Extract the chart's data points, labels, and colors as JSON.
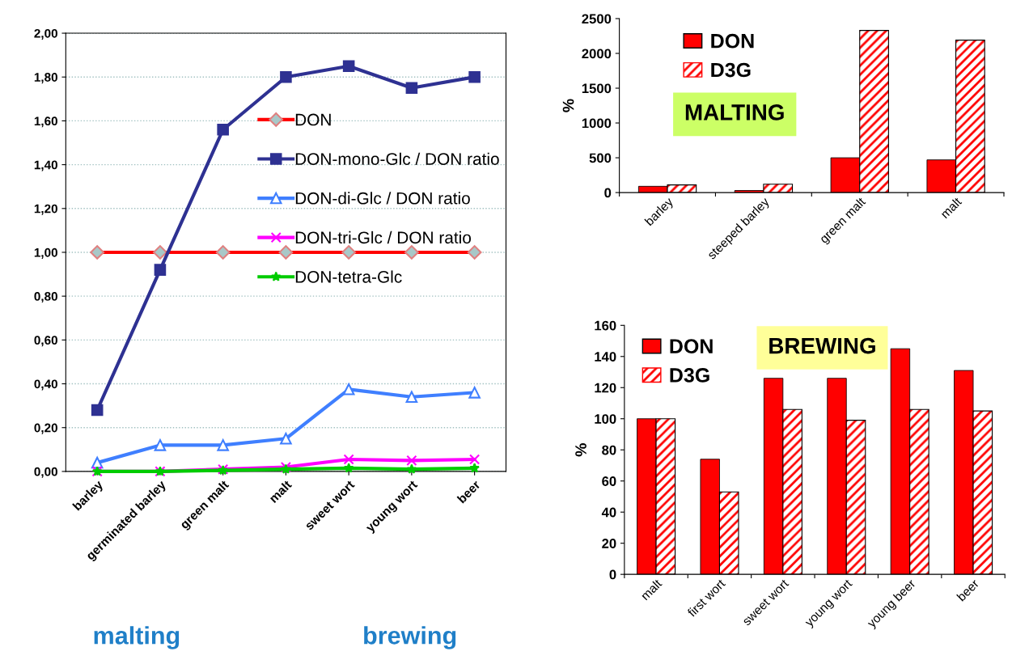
{
  "chart_data": [
    {
      "type": "line",
      "categories": [
        "barley",
        "germinated barley",
        "green malt",
        "malt",
        "sweet wort",
        "young wort",
        "beer"
      ],
      "series": [
        {
          "name": "DON",
          "color": "#ff0000",
          "marker": "diamond",
          "values": [
            1.0,
            1.0,
            1.0,
            1.0,
            1.0,
            1.0,
            1.0
          ]
        },
        {
          "name": "DON-mono-Glc / DON ratio",
          "color": "#2e3192",
          "marker": "square",
          "values": [
            0.28,
            0.92,
            1.56,
            1.8,
            1.85,
            1.75,
            1.8
          ]
        },
        {
          "name": "DON-di-Glc / DON ratio",
          "color": "#3f7fff",
          "marker": "triangle",
          "values": [
            0.04,
            0.12,
            0.12,
            0.15,
            0.375,
            0.34,
            0.36
          ]
        },
        {
          "name": "DON-tri-Glc / DON ratio",
          "color": "#ff00ff",
          "marker": "cross",
          "values": [
            0.0,
            0.0,
            0.01,
            0.02,
            0.055,
            0.05,
            0.055
          ]
        },
        {
          "name": "DON-tetra-Glc",
          "color": "#00cc00",
          "marker": "star",
          "values": [
            0.0,
            0.0,
            0.005,
            0.01,
            0.015,
            0.01,
            0.015
          ]
        }
      ],
      "ylim": [
        0,
        2
      ],
      "yticks": [
        {
          "value": 0,
          "label": "0,00"
        },
        {
          "value": 0.2,
          "label": "0,20"
        },
        {
          "value": 0.4,
          "label": "0,40"
        },
        {
          "value": 0.6,
          "label": "0,60"
        },
        {
          "value": 0.8,
          "label": "0,80"
        },
        {
          "value": 1.0,
          "label": "1,00"
        },
        {
          "value": 1.2,
          "label": "1,20"
        },
        {
          "value": 1.4,
          "label": "1,40"
        },
        {
          "value": 1.6,
          "label": "1,60"
        },
        {
          "value": 1.8,
          "label": "1,80"
        },
        {
          "value": 2.0,
          "label": "2,00"
        }
      ],
      "grid": "y",
      "legend": "right",
      "annotations": [
        "malting",
        "brewing"
      ]
    },
    {
      "type": "bar",
      "categories": [
        "barley",
        "steeped barley",
        "green malt",
        "malt"
      ],
      "series": [
        {
          "name": "DON",
          "color": "#ff0000",
          "values": [
            90,
            30,
            500,
            470
          ]
        },
        {
          "name": "D3G",
          "color": "#ff0000",
          "values": [
            110,
            120,
            2330,
            2190
          ]
        }
      ],
      "ylabel": "%",
      "ylim": [
        0,
        2500
      ],
      "yticks": [
        0,
        500,
        1000,
        1500,
        2000,
        2500
      ],
      "legend": "top left",
      "annotations": [
        "MALTING"
      ]
    },
    {
      "type": "bar",
      "categories": [
        "malt",
        "first wort",
        "sweet wort",
        "young wort",
        "young beer",
        "beer"
      ],
      "series": [
        {
          "name": "DON",
          "color": "#ff0000",
          "values": [
            100,
            74,
            126,
            126,
            145,
            131
          ]
        },
        {
          "name": "D3G",
          "color": "#ff0000",
          "values": [
            100,
            53,
            106,
            99,
            106,
            105
          ]
        }
      ],
      "ylabel": "%",
      "ylim": [
        0,
        160
      ],
      "yticks": [
        0,
        20,
        40,
        60,
        80,
        100,
        120,
        140,
        160
      ],
      "legend": "top left",
      "annotations": [
        "BREWING"
      ]
    }
  ]
}
